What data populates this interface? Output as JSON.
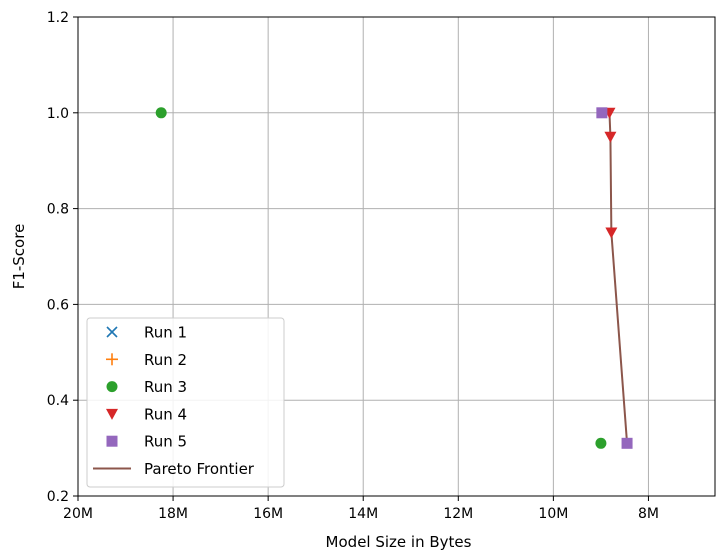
{
  "chart_data": {
    "type": "scatter",
    "title": "",
    "xlabel": "Model Size in Bytes",
    "ylabel": "F1-Score",
    "x_inverted": true,
    "xlim": [
      20000000,
      6600000
    ],
    "ylim": [
      0.2,
      1.2
    ],
    "x_ticks": [
      {
        "value": 20000000,
        "label": "20M"
      },
      {
        "value": 18000000,
        "label": "18M"
      },
      {
        "value": 16000000,
        "label": "16M"
      },
      {
        "value": 14000000,
        "label": "14M"
      },
      {
        "value": 12000000,
        "label": "12M"
      },
      {
        "value": 10000000,
        "label": "10M"
      },
      {
        "value": 8000000,
        "label": "8M"
      }
    ],
    "y_ticks": [
      {
        "value": 0.2,
        "label": "0.2"
      },
      {
        "value": 0.4,
        "label": "0.4"
      },
      {
        "value": 0.6,
        "label": "0.6"
      },
      {
        "value": 0.8,
        "label": "0.8"
      },
      {
        "value": 1.0,
        "label": "1.0"
      },
      {
        "value": 1.2,
        "label": "1.2"
      }
    ],
    "grid": true,
    "legend_position": "lower-left",
    "series": [
      {
        "name": "Run 1",
        "marker": "x",
        "color": "#1f77b4",
        "points": []
      },
      {
        "name": "Run 2",
        "marker": "plus",
        "color": "#ff7f0e",
        "points": []
      },
      {
        "name": "Run 3",
        "marker": "circle",
        "color": "#2ca02c",
        "points": [
          {
            "x": 18250000,
            "y": 1.0
          },
          {
            "x": 9000000,
            "y": 0.31
          }
        ]
      },
      {
        "name": "Run 4",
        "marker": "triangle-down",
        "color": "#d62728",
        "points": [
          {
            "x": 8820000,
            "y": 1.0
          },
          {
            "x": 8800000,
            "y": 0.95
          },
          {
            "x": 8780000,
            "y": 0.75
          }
        ]
      },
      {
        "name": "Run 5",
        "marker": "square",
        "color": "#9467bd",
        "points": [
          {
            "x": 8980000,
            "y": 1.0
          },
          {
            "x": 8450000,
            "y": 0.31
          }
        ]
      },
      {
        "name": "Pareto Frontier",
        "marker": "line",
        "color": "#8c564b",
        "points": [
          {
            "x": 8820000,
            "y": 1.0
          },
          {
            "x": 8800000,
            "y": 0.95
          },
          {
            "x": 8780000,
            "y": 0.75
          },
          {
            "x": 8450000,
            "y": 0.31
          }
        ]
      }
    ]
  }
}
